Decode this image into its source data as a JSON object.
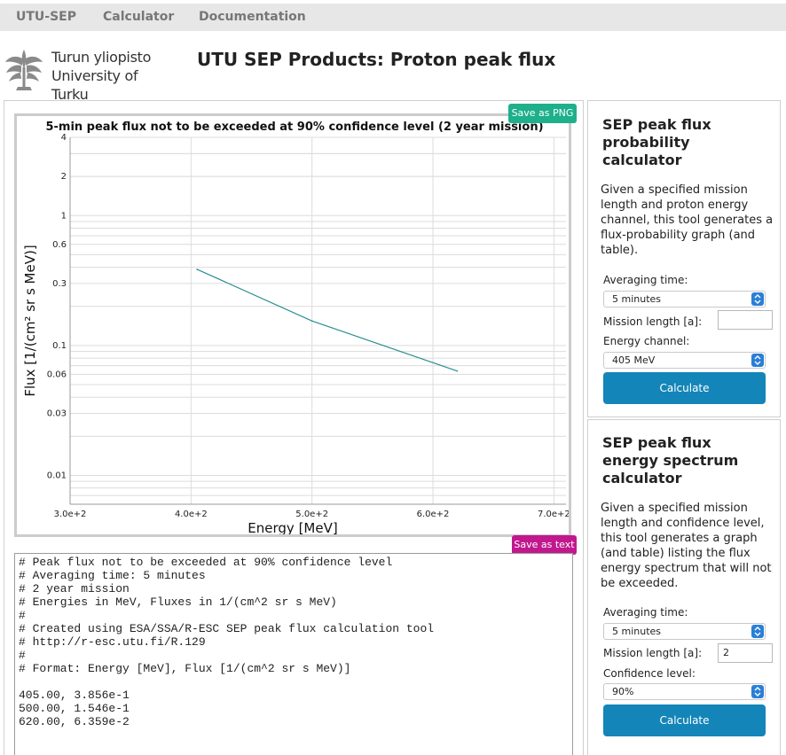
{
  "nav": {
    "items": [
      "UTU-SEP",
      "Calculator",
      "Documentation"
    ]
  },
  "logo": {
    "line1": "Turun yliopisto",
    "line2": "University of Turku"
  },
  "page_title": "UTU SEP Products: Proton peak flux",
  "chart_panel": {
    "save_png_label": "Save as PNG",
    "save_text_label": "Save as text"
  },
  "chart_data": {
    "type": "line",
    "title": "5-min peak flux not to be exceeded at 90% confidence level (2 year mission)",
    "xlabel": "Energy [MeV]",
    "ylabel": "Flux [1/(cm² sr s MeV)]",
    "xlim": [
      300,
      710
    ],
    "ylim": [
      0.006,
      4
    ],
    "yscale": "log",
    "grid": true,
    "x_ticks": [
      300,
      400,
      500,
      600,
      700
    ],
    "x_tick_labels": [
      "3.0e+2",
      "4.0e+2",
      "5.0e+2",
      "6.0e+2",
      "7.0e+2"
    ],
    "y_tick_values": [
      4,
      2,
      1,
      0.6,
      0.3,
      0.1,
      0.06,
      0.03,
      0.01
    ],
    "y_tick_labels": [
      "4",
      "2",
      "1",
      "0.6",
      "0.3",
      "0.1",
      "0.06",
      "0.03",
      "0.01"
    ],
    "series": [
      {
        "x": [
          405,
          500,
          620
        ],
        "y": [
          0.3856,
          0.1546,
          0.06359
        ],
        "color": "#2a8f8f"
      }
    ]
  },
  "text_output": {
    "lines": [
      "# Peak flux not to be exceeded at 90% confidence level",
      "# Averaging time: 5 minutes",
      "# 2 year mission",
      "# Energies in MeV, Fluxes in 1/(cm^2 sr s MeV)",
      "#",
      "# Created using ESA/SSA/R-ESC SEP peak flux calculation tool",
      "# http://r-esc.utu.fi/R.129",
      "#",
      "# Format: Energy [MeV], Flux [1/(cm^2 sr s MeV)]",
      "",
      "405.00, 3.856e-1",
      "500.00, 1.546e-1",
      "620.00, 6.359e-2"
    ]
  },
  "prob_calc": {
    "title": "SEP peak flux probability calculator",
    "description": "Given a specified mission length and proton energy channel, this tool generates a flux-probability graph (and table).",
    "averaging_label": "Averaging time:",
    "averaging_value": "5 minutes",
    "mission_label": "Mission length [a]:",
    "mission_value": "",
    "energy_label": "Energy channel:",
    "energy_value": "405 MeV",
    "calculate_label": "Calculate"
  },
  "spec_calc": {
    "title": "SEP peak flux energy spectrum calculator",
    "description": "Given a specified mission length and confidence level, this tool generates a graph (and table) listing the flux energy spectrum that will not be exceeded.",
    "averaging_label": "Averaging time:",
    "averaging_value": "5 minutes",
    "mission_label": "Mission length [a]:",
    "mission_value": "2",
    "confidence_label": "Confidence level:",
    "confidence_value": "90%",
    "calculate_label": "Calculate"
  },
  "colors": {
    "nav_bg": "#e7e7e7",
    "save_png": "#1db08a",
    "save_text": "#c2188e",
    "calculate": "#1485b8",
    "select_chevron": "#2a7fd6"
  }
}
